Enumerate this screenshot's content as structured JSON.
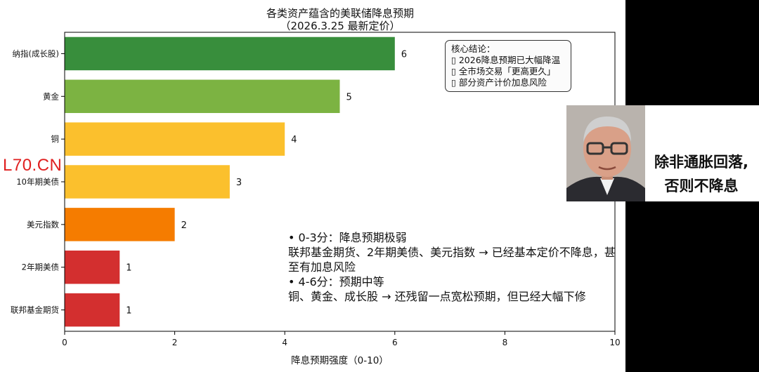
{
  "chart_data": {
    "type": "bar",
    "orientation": "horizontal",
    "title": "各类资产蕴含的美联储降息预期",
    "subtitle": "（2026.3.25 最新定价）",
    "xlabel": "降息预期强度（0-10）",
    "ylabel": "",
    "xlim": [
      0,
      10
    ],
    "xticks": [
      "0",
      "2",
      "4",
      "6",
      "8",
      "10"
    ],
    "grid": false,
    "categories": [
      "纳指(成长股)",
      "黄金",
      "铜",
      "10年期美债",
      "美元指数",
      "2年期美债",
      "联邦基金期货"
    ],
    "values": [
      6,
      5,
      4,
      3,
      2,
      1,
      1
    ],
    "bar_colors": [
      "#388e3c",
      "#7cb342",
      "#fbc02d",
      "#fbc02d",
      "#f57c00",
      "#d32f2f",
      "#d32f2f"
    ],
    "value_labels": [
      "6",
      "5",
      "4",
      "3",
      "2",
      "1",
      "1"
    ]
  },
  "conclusion": {
    "title": "核心结论：",
    "items": [
      "▯ 2026降息预期已大幅降温",
      "▯ 全市场交易「更高更久」",
      "▯ 部分资产计价加息风险"
    ]
  },
  "notes": {
    "line1": "• 0-3分：降息预期极弱",
    "line2": "联邦基金期货、2年期美债、美元指数 → 已经基本定价不降息，甚至有加息风险",
    "line3": "• 4-6分：预期中等",
    "line4": "铜、黄金、成长股 → 还残留一点宽松预期，但已经大幅下修"
  },
  "watermark": "L70.CN",
  "photo_caption": "除非通胀回落,\n否则不降息"
}
